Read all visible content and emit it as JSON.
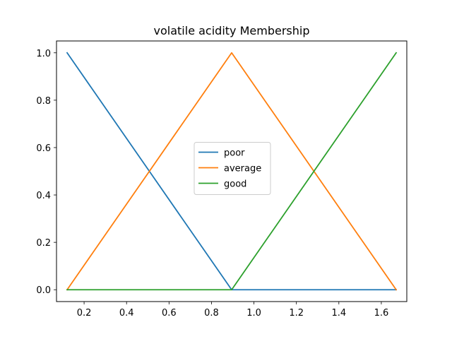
{
  "chart_data": {
    "type": "line",
    "title": "volatile acidity Membership",
    "xlabel": "",
    "ylabel": "",
    "xlim": [
      0.07,
      1.72
    ],
    "ylim": [
      -0.05,
      1.05
    ],
    "x_ticks": [
      "0.2",
      "0.4",
      "0.6",
      "0.8",
      "1.0",
      "1.2",
      "1.4",
      "1.6"
    ],
    "y_ticks": [
      "0.0",
      "0.2",
      "0.4",
      "0.6",
      "0.8",
      "1.0"
    ],
    "grid": false,
    "legend_position": "center",
    "series": [
      {
        "name": "poor",
        "color": "#1f77b4",
        "x": [
          0.12,
          0.895,
          1.67
        ],
        "y": [
          1,
          0,
          0
        ]
      },
      {
        "name": "average",
        "color": "#ff7f0e",
        "x": [
          0.12,
          0.895,
          1.67
        ],
        "y": [
          0,
          1,
          0
        ]
      },
      {
        "name": "good",
        "color": "#2ca02c",
        "x": [
          0.12,
          0.895,
          1.67
        ],
        "y": [
          0,
          0,
          1
        ]
      }
    ]
  }
}
